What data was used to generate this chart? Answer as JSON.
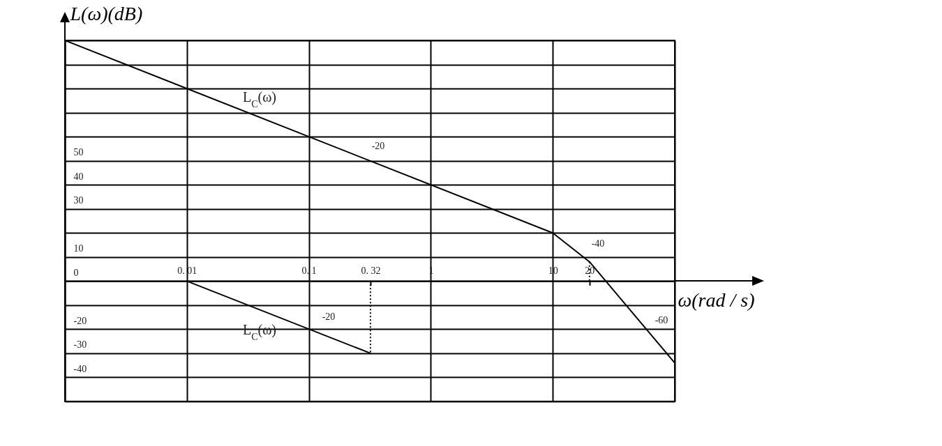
{
  "chart_data": {
    "type": "line",
    "xlabel": "ω(rad / s)",
    "ylabel": "L(ω)(dB)",
    "log": "x",
    "grid": true,
    "xlim": [
      0.001,
      100
    ],
    "ylim": [
      -50,
      100
    ],
    "xticks": [
      {
        "value": 0.001,
        "label": null
      },
      {
        "value": 0.01,
        "label": "0. 01"
      },
      {
        "value": 0.1,
        "label": "0. 1"
      },
      {
        "value": 0.32,
        "label": "0. 32"
      },
      1,
      10,
      20,
      {
        "value": 100,
        "label": null
      }
    ],
    "yticks": [
      {
        "value": 100,
        "label": null
      },
      {
        "value": 90,
        "label": null
      },
      {
        "value": 80,
        "label": null
      },
      {
        "value": 70,
        "label": null
      },
      {
        "value": 60,
        "label": null
      },
      50,
      40,
      30,
      {
        "value": 20,
        "label": null
      },
      10,
      0,
      {
        "value": -10,
        "label": null
      },
      -20,
      -30,
      -40,
      {
        "value": -50,
        "label": null
      }
    ],
    "series": [
      {
        "color": "#000000",
        "x": [
          0.001,
          10,
          20,
          100
        ],
        "values": [
          100,
          20,
          8,
          -34
        ]
      },
      {
        "color": "#000000",
        "x": [
          0.01,
          0.32
        ],
        "values": [
          0,
          -30
        ]
      },
      {
        "color": "#000000",
        "line_style": "dotted",
        "x": [
          0.32,
          0.32
        ],
        "values": [
          0,
          -30
        ]
      },
      {
        "color": "#000000",
        "line_style": "dotted",
        "x": [
          20,
          20
        ],
        "values": [
          8,
          0
        ]
      }
    ],
    "annotations": [
      "L$_{C}$(ω)",
      "L$_{C}$(ω)",
      "-20",
      "-40",
      "-60",
      "-20"
    ]
  }
}
